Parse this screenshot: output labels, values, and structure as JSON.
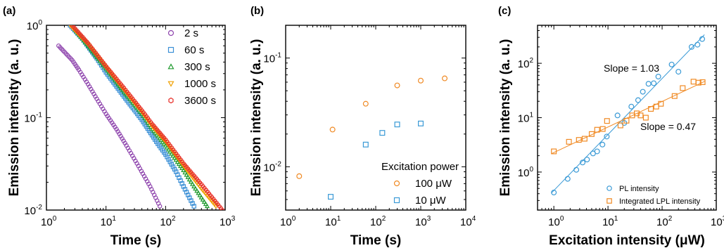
{
  "chart_data": [
    {
      "panel": "(a)",
      "type": "scatter",
      "xlabel": "Time (s)",
      "ylabel": "Emission intensity (a. u.)",
      "xscale": "log",
      "yscale": "log",
      "xlim": [
        1,
        1000
      ],
      "ylim": [
        0.01,
        1
      ],
      "x_tick_labels": [
        {
          "base": "10",
          "exp": "0"
        },
        {
          "base": "10",
          "exp": "1"
        },
        {
          "base": "10",
          "exp": "2"
        },
        {
          "base": "10",
          "exp": "3"
        }
      ],
      "y_tick_labels": [
        {
          "base": "10",
          "exp": "-2"
        },
        {
          "base": "10",
          "exp": "-1"
        },
        {
          "base": "10",
          "exp": "0"
        }
      ],
      "legend_position": "top-right",
      "series": [
        {
          "name": "2 s",
          "marker": "circle",
          "color": "#8e44ad",
          "x": [
            1.6,
            2.7,
            3.5,
            5,
            7,
            10,
            15,
            22,
            35,
            55,
            80
          ],
          "y": [
            0.6,
            0.42,
            0.33,
            0.23,
            0.16,
            0.11,
            0.075,
            0.05,
            0.03,
            0.018,
            0.011
          ]
        },
        {
          "name": "60  s",
          "marker": "square",
          "color": "#3a8fd6",
          "x": [
            2.5,
            4,
            7,
            10,
            20,
            40,
            70,
            100,
            150,
            200,
            300
          ],
          "y": [
            1.0,
            0.72,
            0.44,
            0.31,
            0.17,
            0.095,
            0.055,
            0.04,
            0.026,
            0.018,
            0.011
          ]
        },
        {
          "name": "300 s",
          "marker": "triangle",
          "color": "#1f9a2e",
          "x": [
            3,
            5,
            10,
            20,
            40,
            60,
            100,
            200,
            300,
            500
          ],
          "y": [
            0.9,
            0.6,
            0.34,
            0.19,
            0.11,
            0.075,
            0.05,
            0.027,
            0.018,
            0.011
          ]
        },
        {
          "name": "1000 s",
          "marker": "triangle-down",
          "color": "#f0a000",
          "x": [
            2.5,
            5,
            10,
            20,
            40,
            60,
            100,
            200,
            400,
            700
          ],
          "y": [
            1.0,
            0.62,
            0.35,
            0.2,
            0.115,
            0.08,
            0.055,
            0.03,
            0.017,
            0.011
          ]
        },
        {
          "name": "3600 s",
          "marker": "hexagon",
          "color": "#e8302a",
          "x": [
            2.7,
            5,
            10,
            20,
            40,
            60,
            100,
            200,
            400,
            900
          ],
          "y": [
            1.0,
            0.64,
            0.36,
            0.21,
            0.12,
            0.085,
            0.058,
            0.032,
            0.019,
            0.01
          ]
        }
      ]
    },
    {
      "panel": "(b)",
      "type": "scatter",
      "xlabel": "Time (s)",
      "ylabel": "Emission intensity (a. u.)",
      "xscale": "log",
      "yscale": "log",
      "xlim": [
        1,
        10000
      ],
      "ylim": [
        0.004,
        0.2
      ],
      "x_tick_labels": [
        {
          "base": "10",
          "exp": "0"
        },
        {
          "base": "10",
          "exp": "1"
        },
        {
          "base": "10",
          "exp": "2"
        },
        {
          "base": "10",
          "exp": "3"
        },
        {
          "base": "10",
          "exp": "4"
        }
      ],
      "y_tick_labels": [
        {
          "base": "10",
          "exp": "-2"
        },
        {
          "base": "10",
          "exp": "-1"
        }
      ],
      "legend_title": "Excitation power",
      "legend_position": "bottom-right",
      "series": [
        {
          "name": "100 μW",
          "marker": "circle",
          "color": "#f08a24",
          "x": [
            2,
            11,
            60,
            300,
            1000,
            3400
          ],
          "y": [
            0.0082,
            0.022,
            0.038,
            0.056,
            0.062,
            0.065
          ]
        },
        {
          "name": "10 μW",
          "marker": "square",
          "color": "#3a9ad6",
          "x": [
            10,
            60,
            140,
            300,
            1000
          ],
          "y": [
            0.0053,
            0.016,
            0.0205,
            0.0245,
            0.025
          ]
        }
      ]
    },
    {
      "panel": "(c)",
      "type": "scatter",
      "xlabel": "Excitation intensity (μW)",
      "ylabel": "Emission intensity (a. u.)",
      "xscale": "log",
      "yscale": "log",
      "xlim": [
        0.5,
        1000
      ],
      "ylim": [
        0.2,
        500
      ],
      "x_tick_labels": [
        {
          "base": "10",
          "exp": "0"
        },
        {
          "base": "10",
          "exp": "1"
        },
        {
          "base": "10",
          "exp": "2"
        },
        {
          "base": "10",
          "exp": "3"
        }
      ],
      "y_tick_labels": [
        {
          "base": "10",
          "exp": "0"
        },
        {
          "base": "10",
          "exp": "1"
        },
        {
          "base": "10",
          "exp": "2"
        }
      ],
      "legend_position": "bottom-right",
      "annotations": [
        "Slope = 1.03",
        "Slope = 0.47"
      ],
      "series": [
        {
          "name": "PL intensity",
          "marker": "circle",
          "color": "#3a9ad6",
          "fit_slope": 1.03,
          "x": [
            1,
            1.8,
            2.6,
            3.4,
            4.1,
            5.3,
            6.3,
            7.9,
            9.5,
            15,
            20,
            27,
            36,
            44,
            56,
            70,
            85,
            150,
            200,
            350,
            450,
            550
          ],
          "y": [
            0.42,
            0.75,
            1.1,
            1.5,
            1.7,
            2.2,
            2.4,
            3.2,
            4.5,
            11,
            8,
            16,
            21,
            30,
            42,
            43,
            57,
            95,
            70,
            200,
            220,
            280
          ]
        },
        {
          "name": "Integrated LPL intensity",
          "marker": "square",
          "color": "#f08a24",
          "fit_slope": 0.47,
          "x": [
            1,
            1.9,
            2.9,
            3.7,
            5,
            6.3,
            8,
            9.6,
            17,
            22,
            28,
            34,
            40,
            50,
            62,
            78,
            95,
            170,
            240,
            380,
            470,
            560
          ],
          "y": [
            2.4,
            3.6,
            3.9,
            4.1,
            5,
            6,
            6.2,
            8.7,
            7.2,
            8.8,
            11,
            12,
            11,
            10,
            14.5,
            16,
            18,
            25,
            35,
            46,
            44,
            45
          ]
        }
      ]
    }
  ]
}
